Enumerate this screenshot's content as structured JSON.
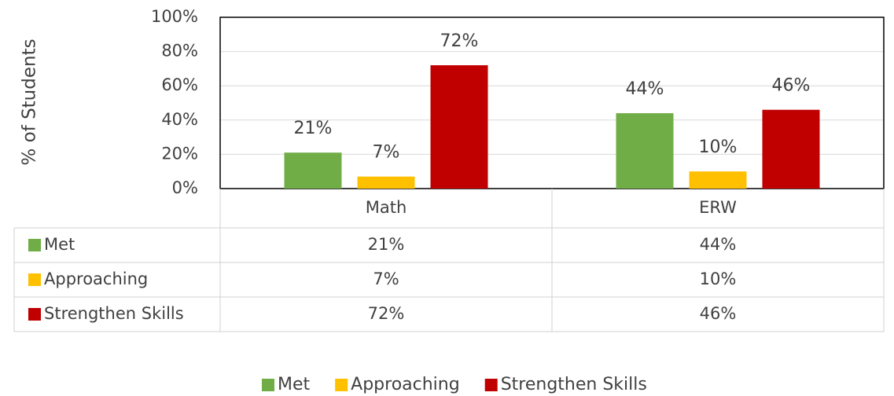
{
  "chart_data": {
    "type": "bar",
    "y_axis_label": "% of Students",
    "categories": [
      "Math",
      "ERW"
    ],
    "series": [
      {
        "name": "Met",
        "color": "#70ad47",
        "values": [
          21,
          44
        ],
        "value_labels": [
          "21%",
          "44%"
        ]
      },
      {
        "name": "Approaching",
        "color": "#ffc000",
        "values": [
          7,
          10
        ],
        "value_labels": [
          "7%",
          "10%"
        ]
      },
      {
        "name": "Strengthen Skills",
        "color": "#c00000",
        "values": [
          72,
          46
        ],
        "value_labels": [
          "72%",
          "46%"
        ]
      }
    ],
    "ylim": [
      0,
      100
    ],
    "yticks": [
      {
        "value": 0,
        "label": "0%"
      },
      {
        "value": 20,
        "label": "20%"
      },
      {
        "value": 40,
        "label": "40%"
      },
      {
        "value": 60,
        "label": "60%"
      },
      {
        "value": 80,
        "label": "80%"
      },
      {
        "value": 100,
        "label": "100%"
      }
    ],
    "grid": true,
    "legend": "bottom"
  }
}
